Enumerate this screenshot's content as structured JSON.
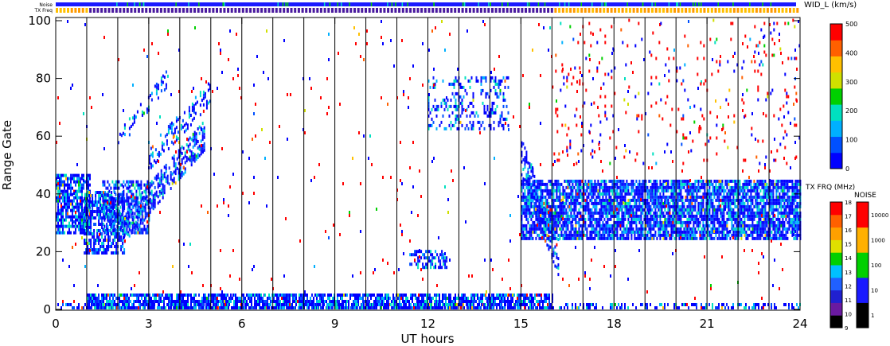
{
  "chart_data": {
    "type": "heatmap",
    "xlabel": "UT hours",
    "ylabel": "Range Gate",
    "xlim": [
      0,
      24
    ],
    "ylim": [
      0,
      100
    ],
    "x_ticks": [
      "0",
      "3",
      "6",
      "9",
      "12",
      "15",
      "18",
      "21",
      "24"
    ],
    "y_ticks": [
      "0",
      "20",
      "40",
      "60",
      "80",
      "100"
    ],
    "hour_separators": true,
    "status_bars": {
      "noise_label": "Noise",
      "txfreq_label": "TX Freq"
    },
    "colorbars": {
      "velocity": {
        "title": "WID_L (km/s)",
        "ticks": [
          "0",
          "100",
          "200",
          "300",
          "400",
          "500"
        ]
      },
      "txfreq": {
        "title": "TX FRQ (MHz)",
        "ticks": [
          "9",
          "10",
          "11",
          "12",
          "13",
          "14",
          "15",
          "16",
          "17",
          "18"
        ]
      },
      "noise": {
        "title": "NOISE",
        "ticks": [
          "1",
          "10",
          "100",
          "1000",
          "10000"
        ]
      }
    },
    "scatter_regions": [
      {
        "label": "band",
        "t0": 0.0,
        "t1": 1.1,
        "g0": 26,
        "g1": 46,
        "density": 0.75
      },
      {
        "label": "band",
        "t0": 0.9,
        "t1": 2.2,
        "g0": 19,
        "g1": 40,
        "density": 0.7
      },
      {
        "label": "band",
        "t0": 1.5,
        "t1": 3.0,
        "g0": 26,
        "g1": 44,
        "density": 0.55
      },
      {
        "label": "diag",
        "t0": 2.2,
        "t1": 4.8,
        "g0a": 28,
        "g0b": 60,
        "width": 10,
        "density": 0.55
      },
      {
        "label": "diag",
        "t0": 3.0,
        "t1": 5.0,
        "g0a": 52,
        "g0b": 75,
        "width": 8,
        "density": 0.35
      },
      {
        "label": "diag",
        "t0": 2.0,
        "t1": 3.6,
        "g0a": 58,
        "g0b": 80,
        "width": 6,
        "density": 0.25
      },
      {
        "label": "patch",
        "t0": 11.4,
        "t1": 12.6,
        "g0": 14,
        "g1": 20,
        "density": 0.45
      },
      {
        "label": "patch",
        "t0": 12.0,
        "t1": 14.6,
        "g0": 62,
        "g1": 80,
        "density": 0.25
      },
      {
        "label": "diag",
        "t0": 15.0,
        "t1": 16.2,
        "g0a": 52,
        "g0b": 18,
        "width": 14,
        "density": 0.55
      },
      {
        "label": "band",
        "t0": 15.0,
        "t1": 24.0,
        "g0": 24,
        "g1": 44,
        "density": 0.8
      },
      {
        "label": "floor",
        "t0": 1.0,
        "t1": 16.0,
        "g0": 0,
        "g1": 5,
        "density": 0.8
      },
      {
        "label": "floor",
        "t0": 0.0,
        "t1": 24.0,
        "g0": 0,
        "g1": 2,
        "density": 0.35
      },
      {
        "label": "noise",
        "t0": 0.0,
        "t1": 24.0,
        "g0": 0,
        "g1": 100,
        "density": 0.012
      },
      {
        "label": "noise",
        "t0": 16.0,
        "t1": 24.0,
        "g0": 50,
        "g1": 100,
        "density": 0.04
      }
    ],
    "colors": {
      "velocity_scale": [
        "#0000ff",
        "#0050ff",
        "#00b0ff",
        "#00e0c0",
        "#00d000",
        "#d0e000",
        "#ffc000",
        "#ff6000",
        "#ff0000"
      ],
      "txfreq_scale": [
        "#000000",
        "#6a1aa0",
        "#2020d0",
        "#2060ff",
        "#00c0ff",
        "#00d000",
        "#e0e000",
        "#ffa000",
        "#ff6000",
        "#ff0000"
      ],
      "noise_scale": [
        "#000000",
        "#1a1aff",
        "#00d000",
        "#ffb000",
        "#ff0000"
      ]
    }
  }
}
